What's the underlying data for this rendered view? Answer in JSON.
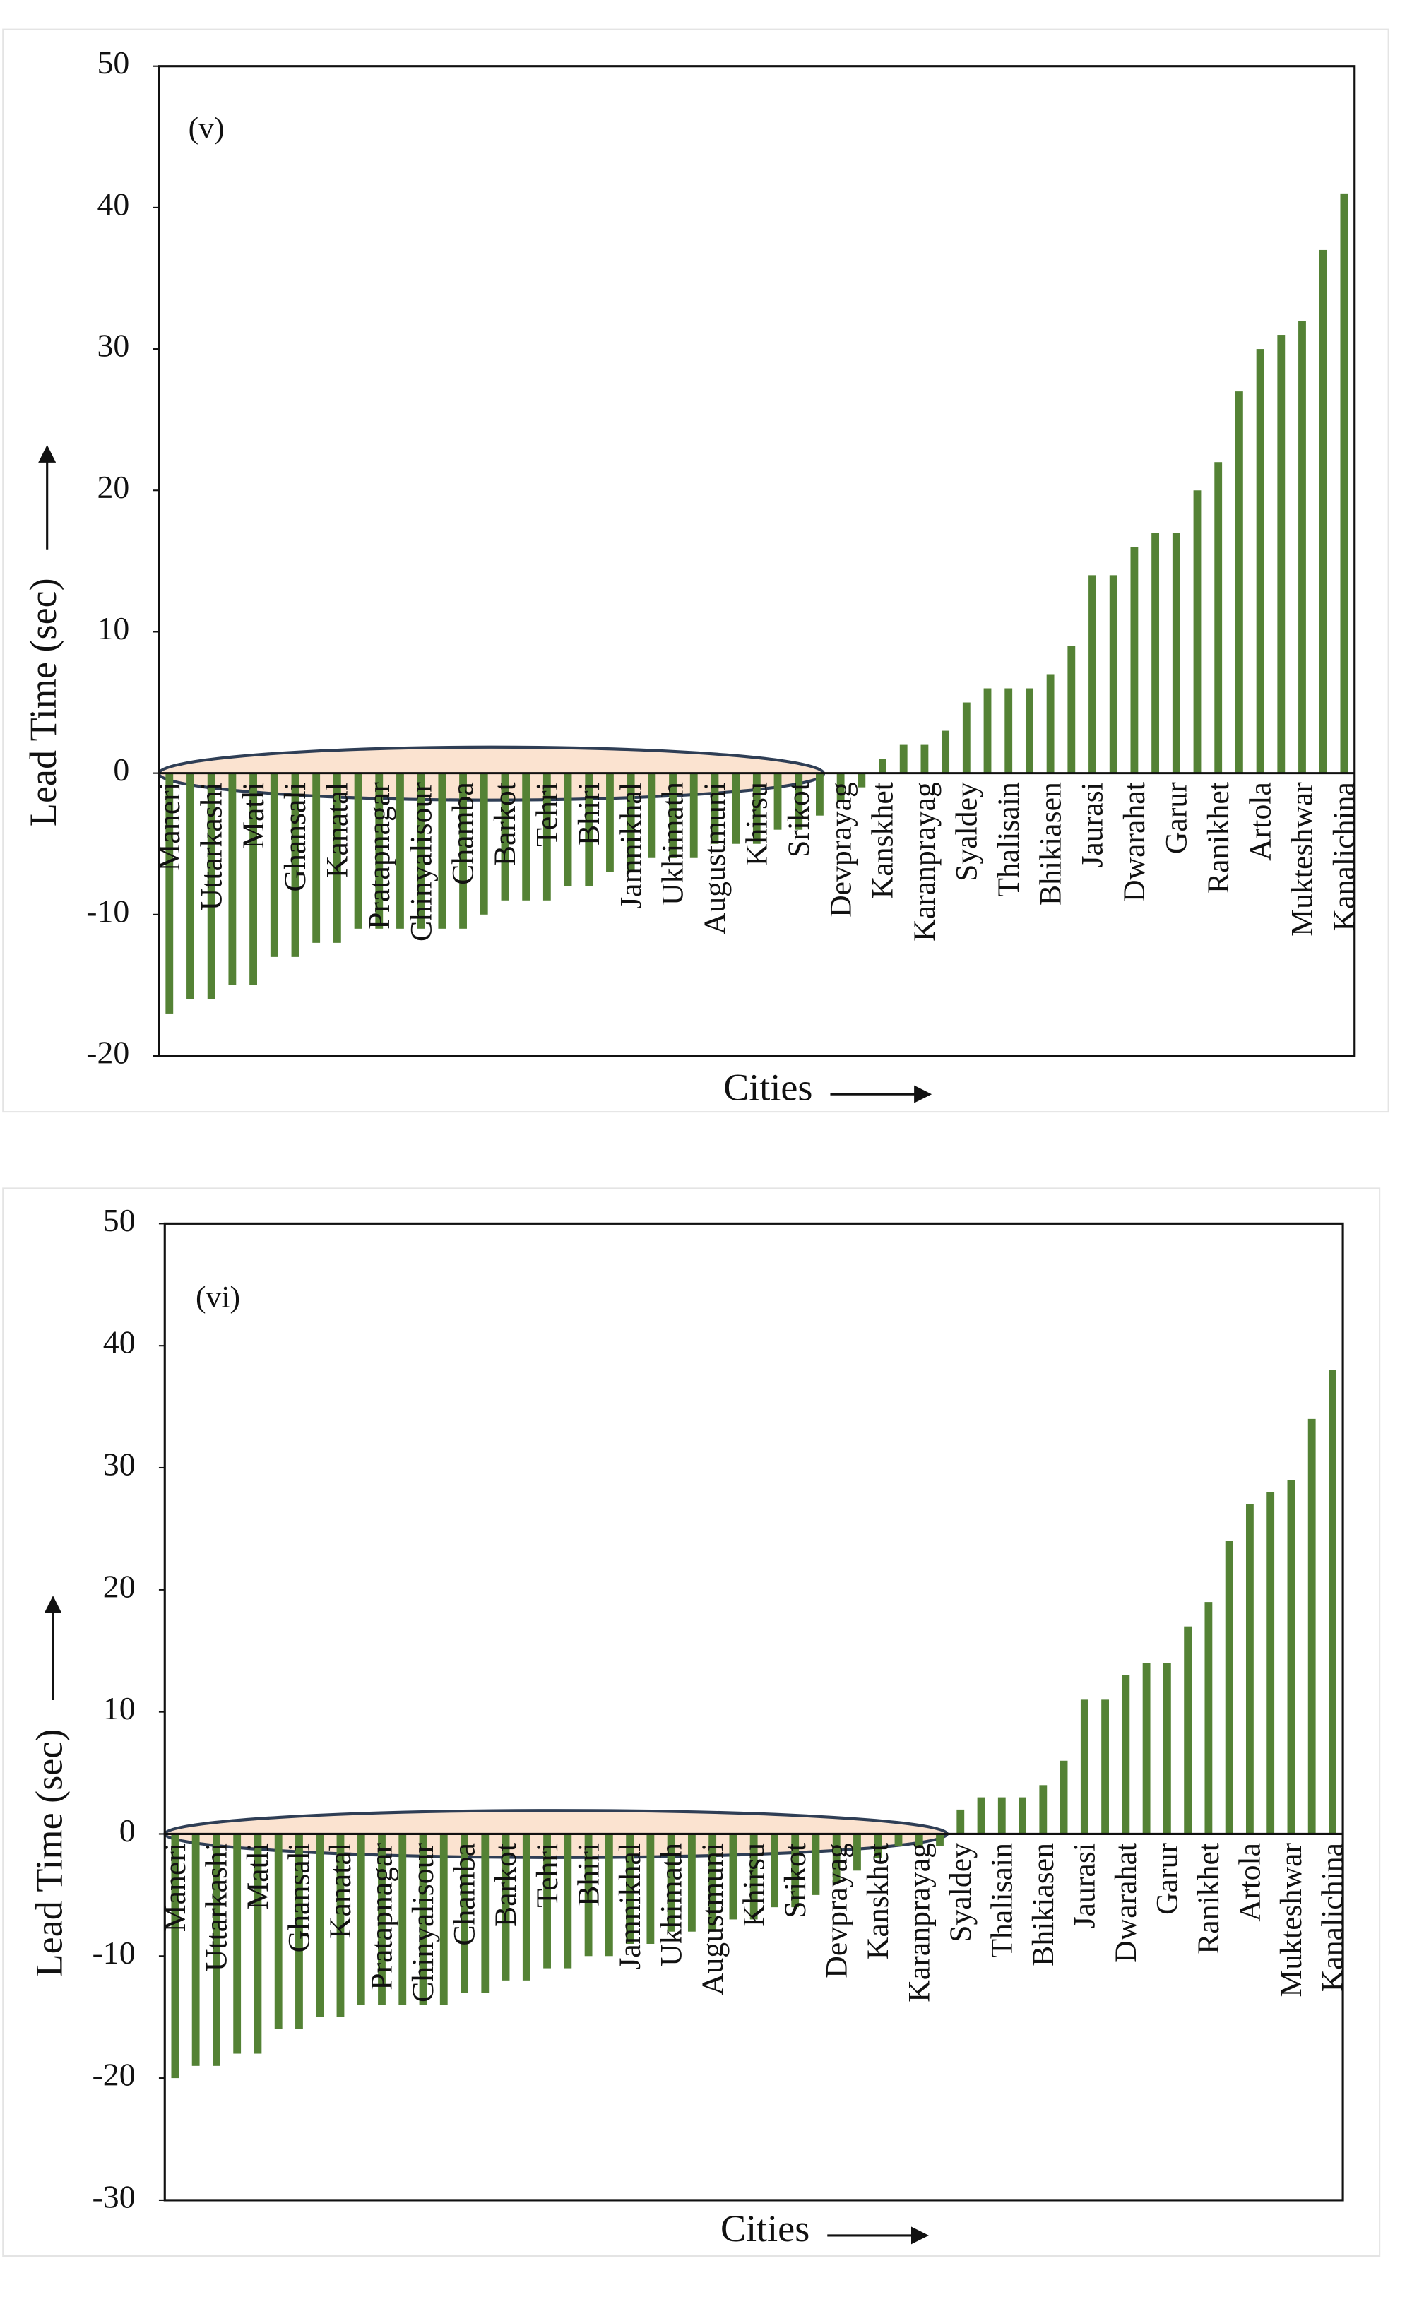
{
  "chart_data": [
    {
      "type": "bar",
      "annotation": "(v)",
      "x_label": "Cities",
      "y_label": "Lead Time (sec)",
      "color": "#548235",
      "ylim": [
        -20,
        50
      ],
      "yticks": [
        -20,
        -10,
        0,
        10,
        20,
        30,
        40,
        50
      ],
      "categories": [
        "Maneri",
        null,
        "Uttarkashi",
        null,
        "Matli",
        null,
        "Ghansali",
        null,
        "Kanatal",
        null,
        "Pratapnagar",
        null,
        "Chinyalisour",
        null,
        "Chamba",
        null,
        "Barkot",
        null,
        "Tehri",
        null,
        "Bhiri",
        null,
        "Jamnikhal",
        null,
        "Ukhimath",
        null,
        "Augustmuni",
        null,
        "Khirsu",
        null,
        "Srikot",
        null,
        "Devprayag",
        null,
        "Kanskhet",
        null,
        "Karanprayag",
        null,
        "Syaldey",
        null,
        "Thalisain",
        null,
        "Bhikiasen",
        null,
        "Jaurasi",
        null,
        "Dwarahat",
        null,
        "Garur",
        null,
        "Ranikhet",
        null,
        "Artola",
        null,
        "Mukteshwar",
        null,
        "Kanalichina"
      ],
      "values": [
        -17,
        -16,
        -16,
        -15,
        -15,
        -13,
        -13,
        -12,
        -12,
        -11,
        -11,
        -11,
        -11,
        -11,
        -11,
        -10,
        -9,
        -9,
        -9,
        -8,
        -8,
        -7,
        -7,
        -6,
        -6,
        -6,
        -5,
        -5,
        -5,
        -4,
        -4,
        -3,
        -2,
        -1,
        1,
        2,
        2,
        3,
        5,
        6,
        6,
        6,
        7,
        9,
        14,
        14,
        16,
        17,
        17,
        20,
        22,
        27,
        30,
        31,
        32,
        37,
        41
      ]
    },
    {
      "type": "bar",
      "annotation": "(vi)",
      "x_label": "Cities",
      "y_label": "Lead Time (sec)",
      "color": "#548235",
      "ylim": [
        -30,
        50
      ],
      "yticks": [
        -30,
        -20,
        -10,
        0,
        10,
        20,
        30,
        40,
        50
      ],
      "categories": [
        "Maneri",
        null,
        "Uttarkashi",
        null,
        "Matli",
        null,
        "Ghansali",
        null,
        "Kanatal",
        null,
        "Pratapnagar",
        null,
        "Chinyalisour",
        null,
        "Chamba",
        null,
        "Barkot",
        null,
        "Tehri",
        null,
        "Bhiri",
        null,
        "Jamnikhal",
        null,
        "Ukhimath",
        null,
        "Augustmuni",
        null,
        "Khirsu",
        null,
        "Srikot",
        null,
        "Devprayag",
        null,
        "Kanskhet",
        null,
        "Karanprayag",
        null,
        "Syaldey",
        null,
        "Thalisain",
        null,
        "Bhikiasen",
        null,
        "Jaurasi",
        null,
        "Dwarahat",
        null,
        "Garur",
        null,
        "Ranikhet",
        null,
        "Artola",
        null,
        "Mukteshwar",
        null,
        "Kanalichina"
      ],
      "values": [
        -20,
        -19,
        -19,
        -18,
        -18,
        -16,
        -16,
        -15,
        -15,
        -14,
        -14,
        -14,
        -14,
        -14,
        -13,
        -13,
        -12,
        -12,
        -11,
        -11,
        -10,
        -10,
        -9,
        -9,
        -8,
        -8,
        -8,
        -7,
        -7,
        -6,
        -6,
        -5,
        -4,
        -3,
        -2,
        -1,
        -1,
        -1,
        2,
        3,
        3,
        3,
        4,
        6,
        11,
        11,
        13,
        14,
        14,
        17,
        19,
        24,
        27,
        28,
        29,
        34,
        38
      ]
    }
  ]
}
